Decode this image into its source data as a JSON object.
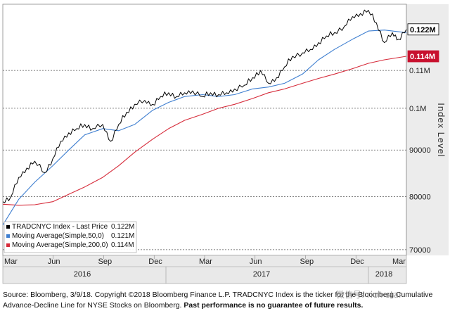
{
  "chart_data": {
    "type": "line",
    "ylabel": "Index Level",
    "y_scale": "log",
    "ylim": [
      69000,
      130000
    ],
    "y_ticks": [
      {
        "value": 70000,
        "label": "70000"
      },
      {
        "value": 80000,
        "label": "80000"
      },
      {
        "value": 90000,
        "label": "90000"
      },
      {
        "value": 100000,
        "label": "0.1M"
      },
      {
        "value": 110000,
        "label": "0.11M"
      }
    ],
    "x_ticks": [
      "Mar",
      "Jun",
      "Sep",
      "Dec",
      "Mar",
      "Jun",
      "Sep",
      "Dec",
      "Mar"
    ],
    "x_years": [
      "2016",
      "2017",
      "2018"
    ],
    "grid": "horizontal dashed",
    "legend_position": "bottom-left",
    "legend": [
      {
        "label": "TRADCNYC Index - Last Price",
        "value": "0.122M",
        "color": "#000000"
      },
      {
        "label": "Moving Average(Simple,50,0)",
        "value": "0.121M",
        "color": "#3f7fd0"
      },
      {
        "label": "Moving Average(Simple,200,0)",
        "value": "0.114M",
        "color": "#d62b3a"
      }
    ],
    "last_value_tags": [
      {
        "text": "0.122M",
        "value": 122000,
        "bg": "#ffffff",
        "fg": "#000000",
        "border": "#000000"
      },
      {
        "text": "0.114M",
        "value": 114000,
        "bg": "#c8102e",
        "fg": "#ffffff",
        "border": "#c8102e"
      }
    ],
    "series": [
      {
        "name": "TRADCNYC Index - Last Price",
        "color": "#000000",
        "x": [
          2016.17,
          2016.21,
          2016.25,
          2016.29,
          2016.33,
          2016.38,
          2016.42,
          2016.46,
          2016.5,
          2016.54,
          2016.58,
          2016.62,
          2016.67,
          2016.71,
          2016.75,
          2016.79,
          2016.83,
          2016.88,
          2016.92,
          2016.96,
          2017.0,
          2017.04,
          2017.08,
          2017.12,
          2017.17,
          2017.21,
          2017.25,
          2017.29,
          2017.33,
          2017.38,
          2017.42,
          2017.46,
          2017.5,
          2017.54,
          2017.58,
          2017.62,
          2017.67,
          2017.71,
          2017.75,
          2017.79,
          2017.83,
          2017.88,
          2017.92,
          2017.96,
          2018.0,
          2018.04,
          2018.08,
          2018.12,
          2018.15,
          2018.19
        ],
        "values": [
          79000,
          80000,
          84000,
          86000,
          87500,
          85000,
          88000,
          92000,
          94000,
          95000,
          96000,
          95000,
          96000,
          92000,
          96000,
          99000,
          101000,
          102000,
          101000,
          103000,
          104000,
          103000,
          104000,
          104500,
          103000,
          104000,
          103500,
          104000,
          105000,
          106000,
          108000,
          110000,
          106500,
          108000,
          111000,
          114000,
          115000,
          116000,
          118000,
          120000,
          121000,
          123000,
          126000,
          127000,
          128000,
          124000,
          118000,
          121000,
          119000,
          122000
        ]
      },
      {
        "name": "Moving Average(Simple,50,0)",
        "color": "#3f7fd0",
        "x": [
          2016.17,
          2016.25,
          2016.33,
          2016.42,
          2016.5,
          2016.58,
          2016.67,
          2016.75,
          2016.83,
          2016.92,
          2017.0,
          2017.08,
          2017.17,
          2017.25,
          2017.33,
          2017.42,
          2017.5,
          2017.58,
          2017.67,
          2017.75,
          2017.83,
          2017.92,
          2018.0,
          2018.08,
          2018.19
        ],
        "values": [
          74500,
          79500,
          83000,
          86500,
          90000,
          93500,
          95000,
          94500,
          96000,
          99500,
          101500,
          103000,
          103500,
          103000,
          103500,
          105000,
          105500,
          106500,
          109000,
          113000,
          116000,
          119000,
          121500,
          121800,
          121000
        ]
      },
      {
        "name": "Moving Average(Simple,200,0)",
        "color": "#d62b3a",
        "x": [
          2016.17,
          2016.25,
          2016.33,
          2016.42,
          2016.5,
          2016.58,
          2016.67,
          2016.75,
          2016.83,
          2016.92,
          2017.0,
          2017.08,
          2017.17,
          2017.25,
          2017.33,
          2017.42,
          2017.5,
          2017.58,
          2017.67,
          2017.75,
          2017.83,
          2017.92,
          2018.0,
          2018.08,
          2018.19
        ],
        "values": [
          78500,
          78300,
          78400,
          79000,
          80500,
          82000,
          84000,
          86500,
          89500,
          92500,
          95000,
          97000,
          98500,
          100000,
          101000,
          102500,
          104000,
          105000,
          106500,
          107800,
          109000,
          110500,
          112000,
          113000,
          114000
        ]
      }
    ]
  },
  "footer": {
    "source_text": "Source: Bloomberg, 3/9/18. Copyright ©2018 Bloomberg Finance L.P. TRADCNYC Index is the ticker for the Bloomberg Cumulative Advance-Decline Line for NYSE Stocks on Bloomberg. ",
    "disclaimer": "Past performance is no guarantee of future results.",
    "watermark": "微信号: rich-star"
  }
}
